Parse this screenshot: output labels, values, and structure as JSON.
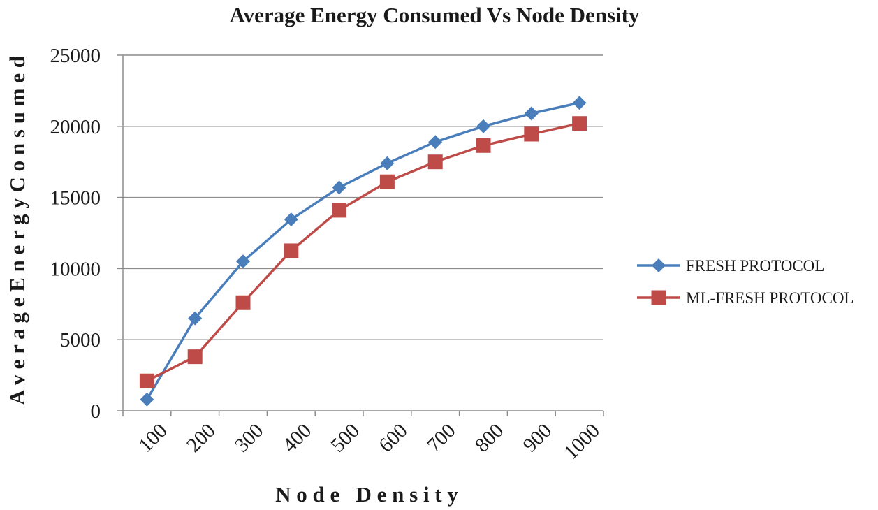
{
  "chart_data": {
    "type": "line",
    "title": "Average Energy Consumed Vs Node Density",
    "xlabel": "N o d e   D e n s i t y",
    "ylabel": "A v e r a g e E n e r g y C o n s u m e d",
    "categories": [
      "100",
      "200",
      "300",
      "400",
      "500",
      "600",
      "700",
      "800",
      "900",
      "1000"
    ],
    "ylim": [
      0,
      25000
    ],
    "yticks": [
      0,
      5000,
      10000,
      15000,
      20000,
      25000
    ],
    "grid": true,
    "legend_position": "right",
    "series": [
      {
        "name": "FRESH PROTOCOL",
        "color": "#4a7ebb",
        "marker": "diamond",
        "values": [
          800,
          6500,
          10500,
          13450,
          15700,
          17400,
          18900,
          20000,
          20900,
          21650
        ]
      },
      {
        "name": "ML-FRESH PROTOCOL",
        "color": "#be4b48",
        "marker": "square",
        "values": [
          2100,
          3800,
          7600,
          11250,
          14100,
          16100,
          17500,
          18650,
          19450,
          20200
        ]
      }
    ]
  }
}
